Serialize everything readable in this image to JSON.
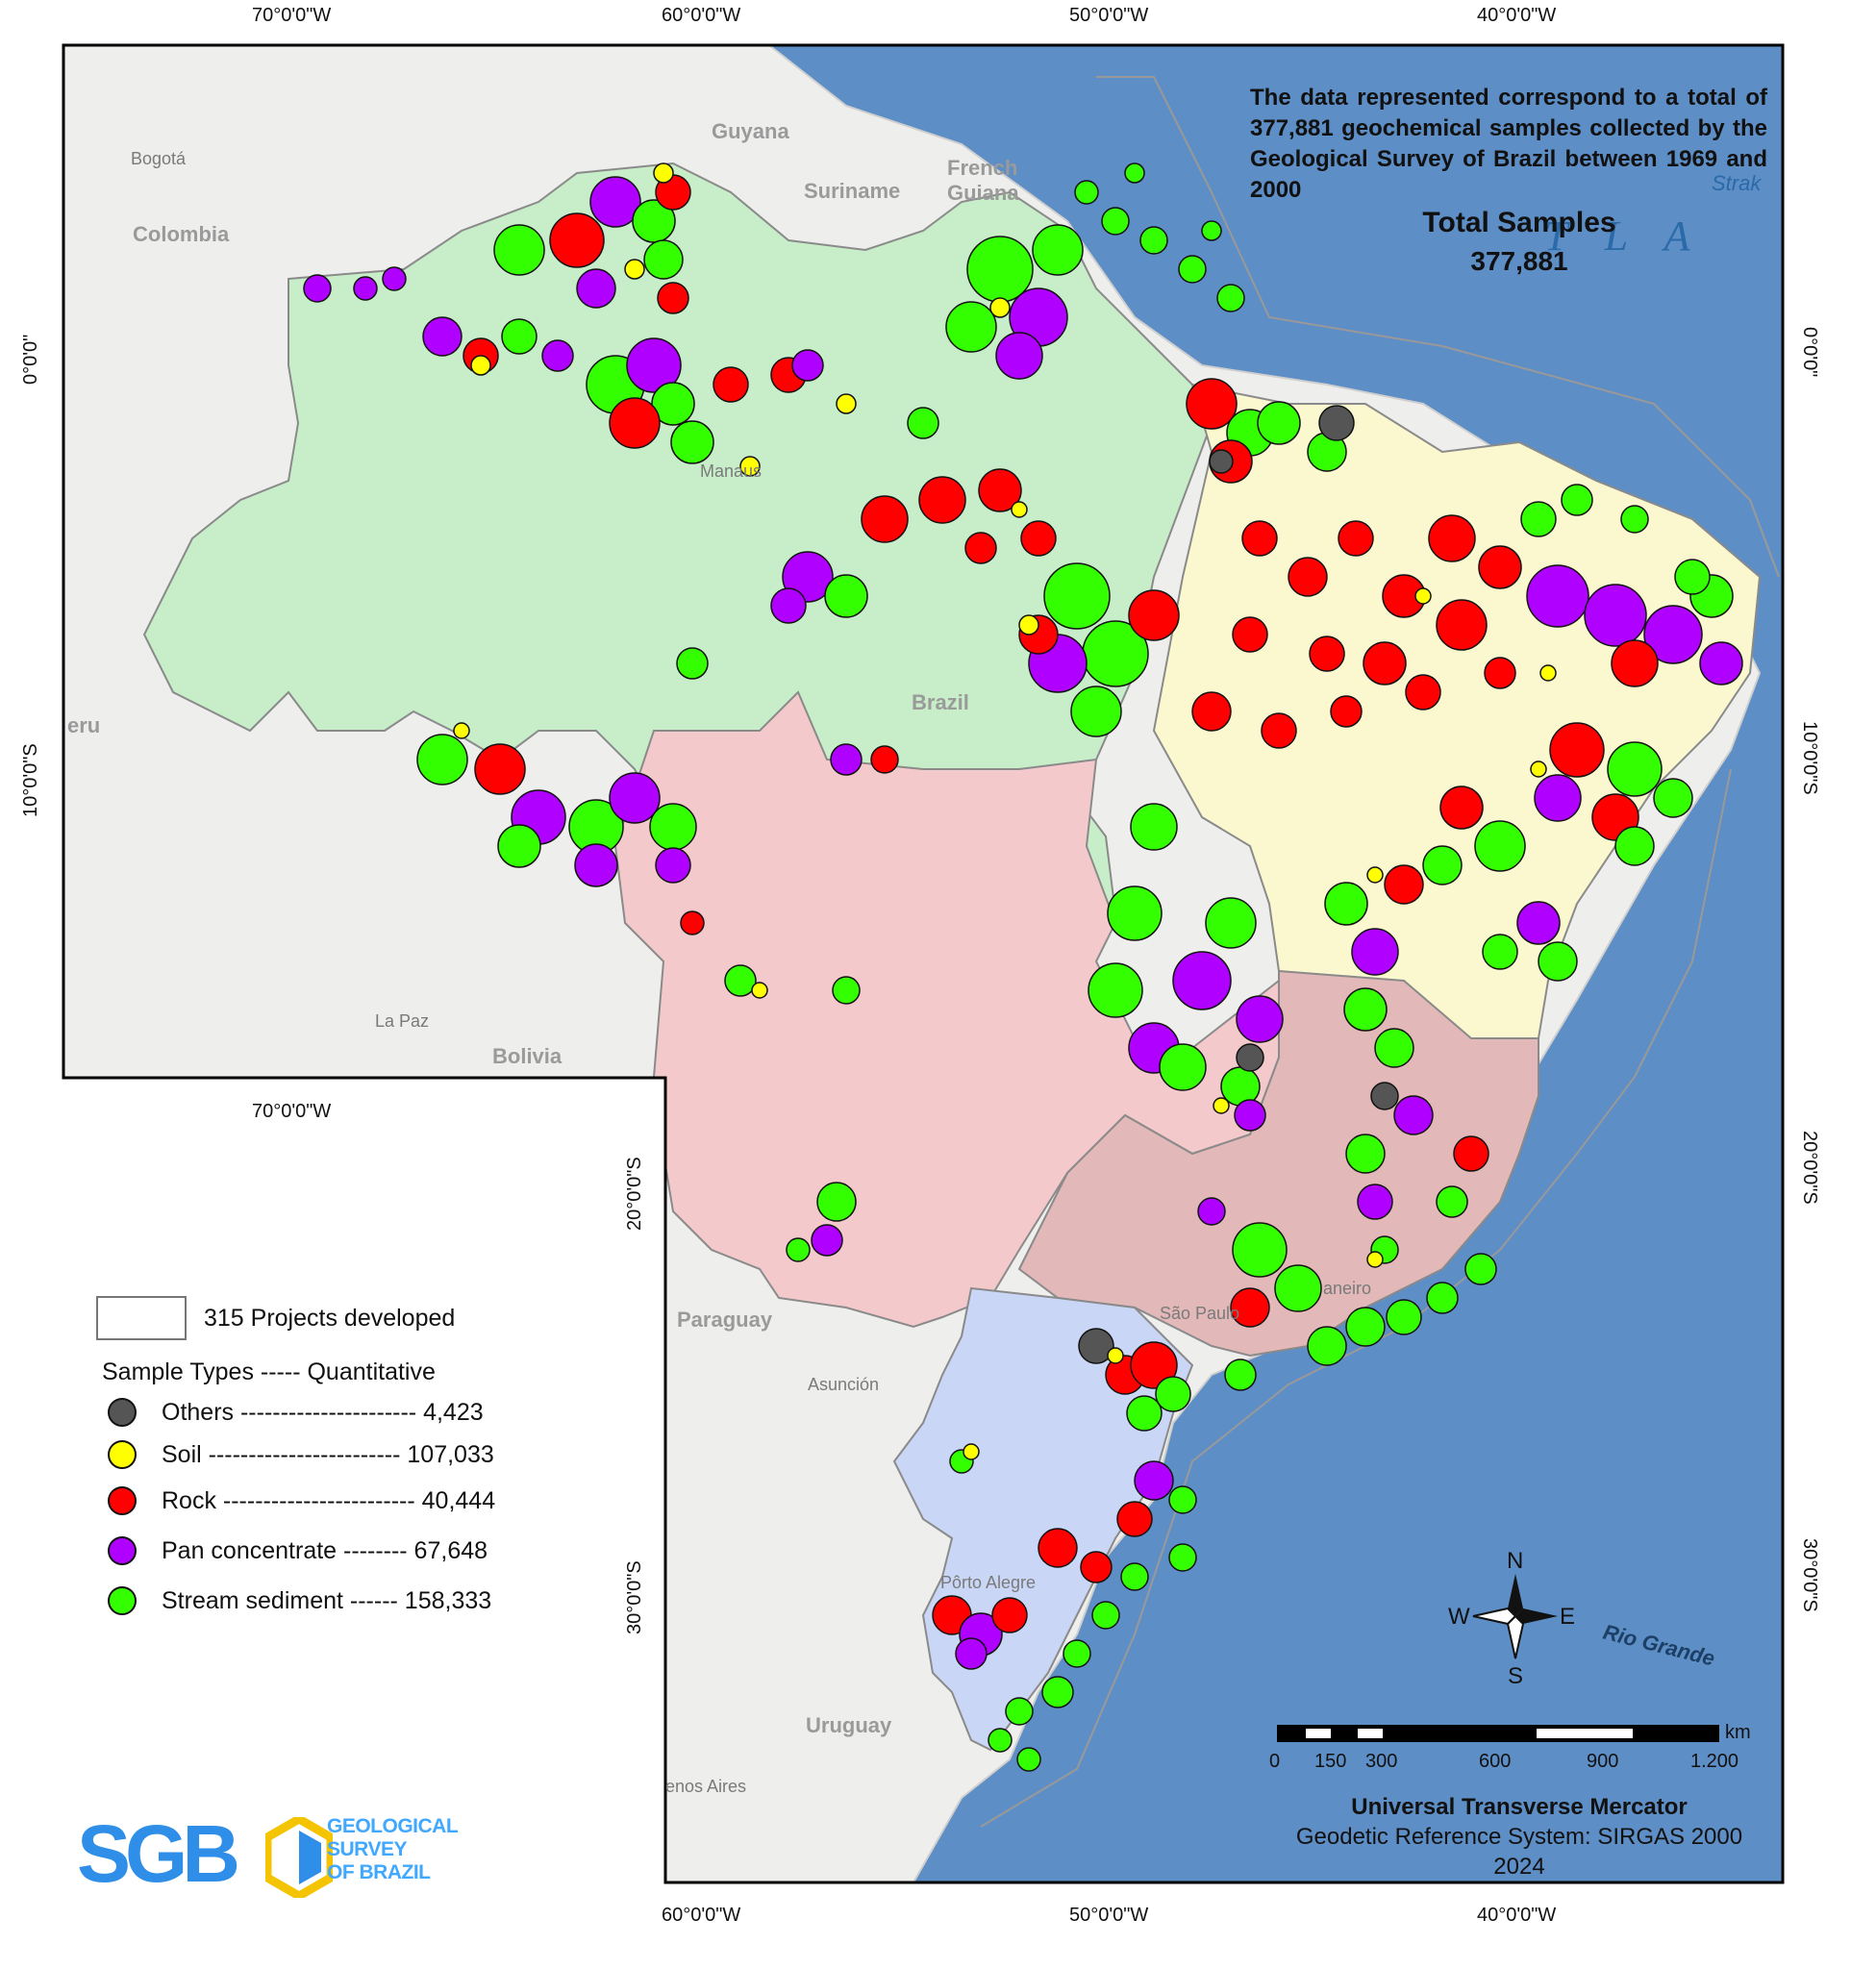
{
  "map": {
    "graticule_top": [
      "70°0'0\"W",
      "60°0'0\"W",
      "50°0'0\"W",
      "40°0'0\"W"
    ],
    "graticule_mid": "70°0'0\"W",
    "graticule_bottom": [
      "60°0'0\"W",
      "50°0'0\"W",
      "40°0'0\"W"
    ],
    "graticule_left": [
      "0°0'0\"",
      "10°0'0\"S",
      "20°0'0\"S",
      "30°0'0\"S"
    ],
    "graticule_right": [
      "0°0'0\"",
      "10°0'0\"S",
      "20°0'0\"S",
      "30°0'0\"S"
    ],
    "places": {
      "guyana": "Guyana",
      "suriname": "Suriname",
      "french_guiana_1": "French",
      "french_guiana_2": "Guiana",
      "colombia": "Colombia",
      "bogota": "Bogotá",
      "peru": "eru",
      "bolivia": "Bolivia",
      "la_paz": "La Paz",
      "paraguay": "Paraguay",
      "asuncion": "Asunción",
      "uruguay": "Uruguay",
      "buenos_aires": "enos Aires",
      "brazil": "Brazil",
      "rio_grande": "Rio Grande",
      "ocean": "T L A",
      "strak": "Strak",
      "sao_paulo": "São Paulo",
      "porto_alegre": "Pôrto Alegre",
      "manaus": "Manaus",
      "rio": "aneiro"
    },
    "colors": {
      "ocean": "#5d8ec6",
      "land": "#f0f0ee",
      "north": "#c7eec8",
      "northeast": "#fbf7cf",
      "centerwest": "#f4c9cb",
      "southeast": "#e2b8b8",
      "south": "#c9d6f5"
    }
  },
  "info": {
    "text": "The data represented correspond to a total of 377,881 geochemical samples collected by the Geological Survey of Brazil between 1969 and 2000",
    "total_label": "Total Samples",
    "total_value": "377,881"
  },
  "legend": {
    "projects": "315 Projects developed",
    "header": "Sample Types  -----  Quantitative",
    "items": [
      {
        "label": "Others ---------------------- 4,423",
        "color": "#555555"
      },
      {
        "label": "Soil ------------------------ 107,033",
        "color": "#ffff00"
      },
      {
        "label": "Rock ------------------------ 40,444",
        "color": "#ff0000"
      },
      {
        "label": "Pan concentrate -------- 67,648",
        "color": "#b000ff"
      },
      {
        "label": "Stream sediment ------ 158,333",
        "color": "#33ff00"
      }
    ]
  },
  "scale": {
    "unit": "km",
    "ticks": [
      "0",
      "150",
      "300",
      "600",
      "900",
      "1.200"
    ]
  },
  "compass": {
    "n": "N",
    "s": "S",
    "e": "E",
    "w": "W"
  },
  "projection": {
    "name": "Universal Transverse Mercator",
    "datum": "Geodetic Reference System: SIRGAS 2000",
    "year": "2024"
  },
  "logo": {
    "letters": "SGB",
    "line1": "GEOLOGICAL",
    "line2": "SURVEY",
    "line3": "OF BRAZIL"
  }
}
